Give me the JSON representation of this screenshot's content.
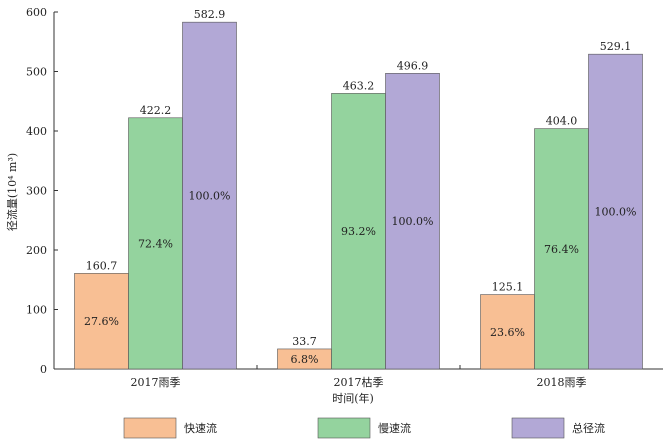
{
  "chart_data": {
    "type": "bar",
    "title": "",
    "xlabel": "时间(年)",
    "ylabel": "径流量(10⁴ m³)",
    "ylim": [
      0,
      600
    ],
    "yticks": [
      0,
      100,
      200,
      300,
      400,
      500,
      600
    ],
    "categories": [
      "2017雨季",
      "2017枯季",
      "2018雨季"
    ],
    "series": [
      {
        "name": "快速流",
        "color": "#f8bf94",
        "values": [
          160.7,
          33.7,
          125.1
        ],
        "value_labels": [
          "160.7",
          "33.7",
          "125.1"
        ],
        "percent_labels": [
          "27.6%",
          "6.8%",
          "23.6%"
        ]
      },
      {
        "name": "慢速流",
        "color": "#94d39e",
        "values": [
          422.2,
          463.2,
          404.0
        ],
        "value_labels": [
          "422.2",
          "463.2",
          "404.0"
        ],
        "percent_labels": [
          "72.4%",
          "93.2%",
          "76.4%"
        ]
      },
      {
        "name": "总径流",
        "color": "#b2a8d6",
        "values": [
          582.9,
          496.9,
          529.1
        ],
        "value_labels": [
          "582.9",
          "496.9",
          "529.1"
        ],
        "percent_labels": [
          "100.0%",
          "100.0%",
          "100.0%"
        ]
      }
    ],
    "grid": false,
    "legend_position": "bottom"
  }
}
